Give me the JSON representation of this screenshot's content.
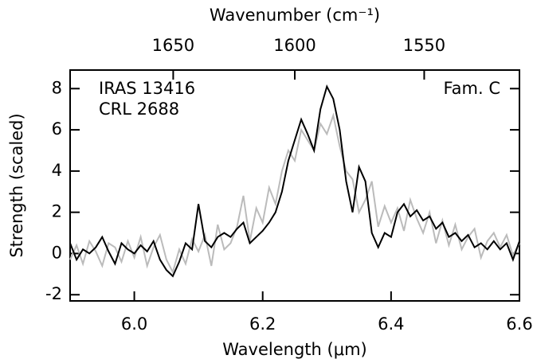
{
  "chart_data": {
    "type": "line",
    "xlabel": "Wavelength (μm)",
    "x2label": "Wavenumber (cm⁻¹)",
    "ylabel": "Strength (scaled)",
    "annotation": "Fam. C",
    "x": [
      5.9,
      5.91,
      5.92,
      5.93,
      5.94,
      5.95,
      5.96,
      5.97,
      5.98,
      5.99,
      6.0,
      6.01,
      6.02,
      6.03,
      6.04,
      6.05,
      6.06,
      6.07,
      6.08,
      6.09,
      6.1,
      6.11,
      6.12,
      6.13,
      6.14,
      6.15,
      6.16,
      6.17,
      6.18,
      6.19,
      6.2,
      6.21,
      6.22,
      6.23,
      6.24,
      6.25,
      6.26,
      6.27,
      6.28,
      6.29,
      6.3,
      6.31,
      6.32,
      6.33,
      6.34,
      6.35,
      6.36,
      6.37,
      6.38,
      6.39,
      6.4,
      6.41,
      6.42,
      6.43,
      6.44,
      6.45,
      6.46,
      6.47,
      6.48,
      6.49,
      6.5,
      6.51,
      6.52,
      6.53,
      6.54,
      6.55,
      6.56,
      6.57,
      6.58,
      6.59,
      6.6
    ],
    "series": [
      {
        "name": "CRL 2688",
        "color": "#bbbbbb",
        "values": [
          -0.3,
          0.4,
          -0.5,
          0.6,
          0.1,
          -0.6,
          0.5,
          0.3,
          -0.4,
          0.6,
          -0.2,
          0.8,
          -0.6,
          0.3,
          0.9,
          -0.3,
          -0.9,
          0.2,
          -0.5,
          0.7,
          0.1,
          0.9,
          -0.6,
          1.4,
          0.2,
          0.5,
          1.3,
          2.8,
          0.6,
          2.2,
          1.5,
          3.2,
          2.4,
          4.0,
          5.0,
          4.5,
          6.0,
          5.5,
          5.0,
          6.3,
          5.8,
          6.7,
          5.2,
          4.0,
          3.6,
          2.0,
          2.6,
          3.5,
          1.3,
          2.3,
          1.5,
          2.2,
          1.1,
          2.6,
          1.7,
          1.0,
          2.0,
          0.5,
          1.6,
          0.4,
          1.4,
          0.2,
          0.8,
          1.2,
          -0.2,
          0.6,
          1.0,
          0.3,
          0.9,
          -0.1,
          0.5
        ]
      },
      {
        "name": "IRAS 13416",
        "color": "#000000",
        "values": [
          0.5,
          -0.3,
          0.2,
          0,
          0.3,
          0.8,
          0.1,
          -0.5,
          0.5,
          0.2,
          0,
          0.4,
          0.1,
          0.6,
          -0.3,
          -0.8,
          -1.1,
          -0.4,
          0.5,
          0.2,
          2.4,
          0.6,
          0.3,
          0.8,
          1.0,
          0.8,
          1.2,
          1.5,
          0.5,
          0.8,
          1.1,
          1.5,
          2.0,
          3.0,
          4.5,
          5.5,
          6.5,
          5.8,
          5.0,
          7.0,
          8.1,
          7.5,
          6.0,
          3.5,
          2.0,
          4.2,
          3.5,
          1.0,
          0.3,
          1.0,
          0.8,
          2.0,
          2.4,
          1.8,
          2.1,
          1.6,
          1.8,
          1.2,
          1.5,
          0.8,
          1.0,
          0.6,
          0.9,
          0.3,
          0.5,
          0.2,
          0.6,
          0.2,
          0.5,
          -0.3,
          0.6
        ]
      }
    ],
    "xlim": [
      5.9,
      6.6
    ],
    "xticks": [
      {
        "value": 6,
        "label": "6.0"
      },
      6.2,
      6.4,
      6.6
    ],
    "x2ticks": [
      1650,
      1600,
      1550
    ],
    "ylim": [
      -2.3,
      8.9
    ],
    "yticks": [
      -2,
      0,
      2,
      4,
      6,
      8
    ]
  }
}
